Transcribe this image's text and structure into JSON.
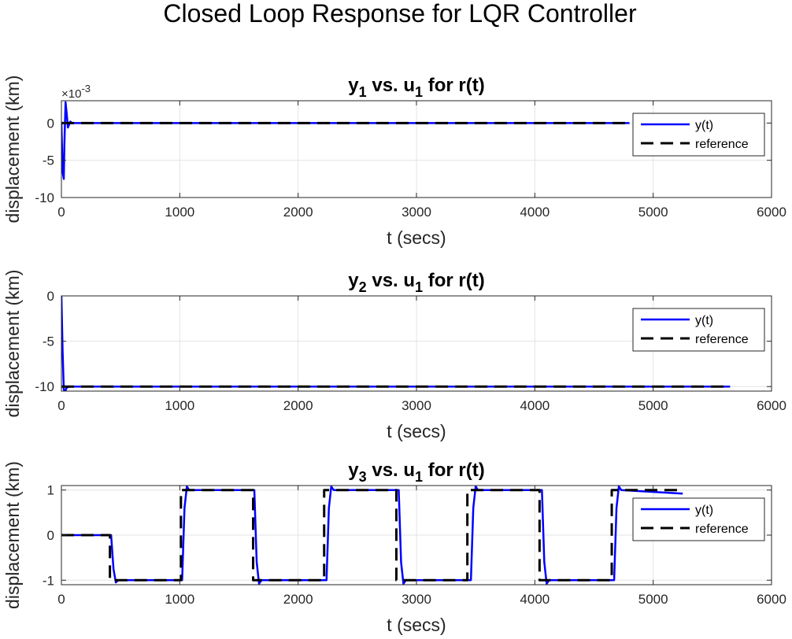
{
  "figure": {
    "suptitle": "Closed Loop Response for LQR Controller"
  },
  "chart_data": [
    {
      "type": "line",
      "title_main": "y",
      "title_main_sub": "1",
      "title_mid": " vs. u",
      "title_mid_sub": "1",
      "title_end": " for r(t)",
      "xlabel": "t (secs)",
      "ylabel": "displacement (km)",
      "xlim": [
        0,
        6000
      ],
      "ylim": [
        -0.01,
        0.003
      ],
      "xticks": [
        0,
        1000,
        2000,
        3000,
        4000,
        5000,
        6000
      ],
      "xtick_labels": [
        "0",
        "1000",
        "2000",
        "3000",
        "4000",
        "5000",
        "6000"
      ],
      "yticks": [
        -0.01,
        -0.005,
        0
      ],
      "ytick_labels": [
        "-10",
        "-5",
        "0"
      ],
      "y_exponent": "×10",
      "y_exponent_power": "-3",
      "grid": true,
      "legend_position": "top-right",
      "series": [
        {
          "name": "y(t)",
          "color": "#0000ff",
          "style": "solid",
          "x": [
            0,
            10,
            20,
            25,
            35,
            45,
            55,
            65,
            75,
            90,
            120,
            4800
          ],
          "y": [
            0,
            -0.0065,
            -0.0075,
            -0.003,
            0.0028,
            0.0012,
            -0.0006,
            -0.0002,
            0.0002,
            0,
            0,
            0
          ]
        },
        {
          "name": "reference",
          "color": "#000000",
          "style": "dashed",
          "x": [
            0,
            4800
          ],
          "y": [
            0,
            0
          ]
        }
      ]
    },
    {
      "type": "line",
      "title_main": "y",
      "title_main_sub": "2",
      "title_mid": " vs. u",
      "title_mid_sub": "1",
      "title_end": " for r(t)",
      "xlabel": "t (secs)",
      "ylabel": "displacement (km)",
      "xlim": [
        0,
        6000
      ],
      "ylim": [
        -10.5,
        0
      ],
      "xticks": [
        0,
        1000,
        2000,
        3000,
        4000,
        5000,
        6000
      ],
      "xtick_labels": [
        "0",
        "1000",
        "2000",
        "3000",
        "4000",
        "5000",
        "6000"
      ],
      "yticks": [
        -10,
        -5,
        0
      ],
      "ytick_labels": [
        "-10",
        "-5",
        "0"
      ],
      "grid": true,
      "legend_position": "top-right",
      "series": [
        {
          "name": "y(t)",
          "color": "#0000ff",
          "style": "solid",
          "x": [
            0,
            10,
            20,
            30,
            45,
            70,
            5650
          ],
          "y": [
            0,
            -6,
            -10.3,
            -10.6,
            -10.1,
            -10,
            -10
          ]
        },
        {
          "name": "reference",
          "color": "#000000",
          "style": "dashed",
          "x": [
            0,
            5650
          ],
          "y": [
            -10,
            -10
          ]
        }
      ]
    },
    {
      "type": "line",
      "title_main": "y",
      "title_main_sub": "3",
      "title_mid": " vs. u",
      "title_mid_sub": "1",
      "title_end": " for r(t)",
      "xlabel": "t (secs)",
      "ylabel": "displacement (km)",
      "xlim": [
        0,
        6000
      ],
      "ylim": [
        -1.1,
        1.1
      ],
      "xticks": [
        0,
        1000,
        2000,
        3000,
        4000,
        5000,
        6000
      ],
      "xtick_labels": [
        "0",
        "1000",
        "2000",
        "3000",
        "4000",
        "5000",
        "6000"
      ],
      "yticks": [
        -1,
        0,
        1
      ],
      "ytick_labels": [
        "-1",
        "0",
        "1"
      ],
      "grid": true,
      "legend_position": "top-right",
      "series": [
        {
          "name": "y(t)",
          "color": "#0000ff",
          "style": "solid",
          "x": [
            0,
            420,
            440,
            460,
            480,
            1020,
            1040,
            1060,
            1080,
            1630,
            1650,
            1670,
            1690,
            2240,
            2260,
            2280,
            2300,
            2850,
            2870,
            2890,
            2910,
            3460,
            3480,
            3500,
            3520,
            4060,
            4080,
            4100,
            4120,
            4670,
            4690,
            4710,
            4730,
            5250
          ],
          "y": [
            0,
            0,
            -0.75,
            -1.05,
            -1.0,
            -1.0,
            0.6,
            1.08,
            1.0,
            1.0,
            -0.6,
            -1.08,
            -1.0,
            -1.0,
            0.6,
            1.08,
            1.0,
            1.0,
            -0.6,
            -1.08,
            -1.0,
            -1.0,
            0.6,
            1.08,
            1.0,
            1.0,
            -0.6,
            -1.08,
            -1.0,
            -1.0,
            0.6,
            1.08,
            1.0,
            0.92
          ]
        },
        {
          "name": "reference",
          "color": "#000000",
          "style": "dashed",
          "x": [
            0,
            410,
            410,
            1010,
            1010,
            1620,
            1620,
            2220,
            2220,
            2830,
            2830,
            3430,
            3430,
            4040,
            4040,
            4650,
            4650,
            5250
          ],
          "y": [
            0,
            0,
            -1,
            -1,
            1,
            1,
            -1,
            -1,
            1,
            1,
            -1,
            -1,
            1,
            1,
            -1,
            -1,
            1,
            1
          ]
        }
      ]
    }
  ]
}
